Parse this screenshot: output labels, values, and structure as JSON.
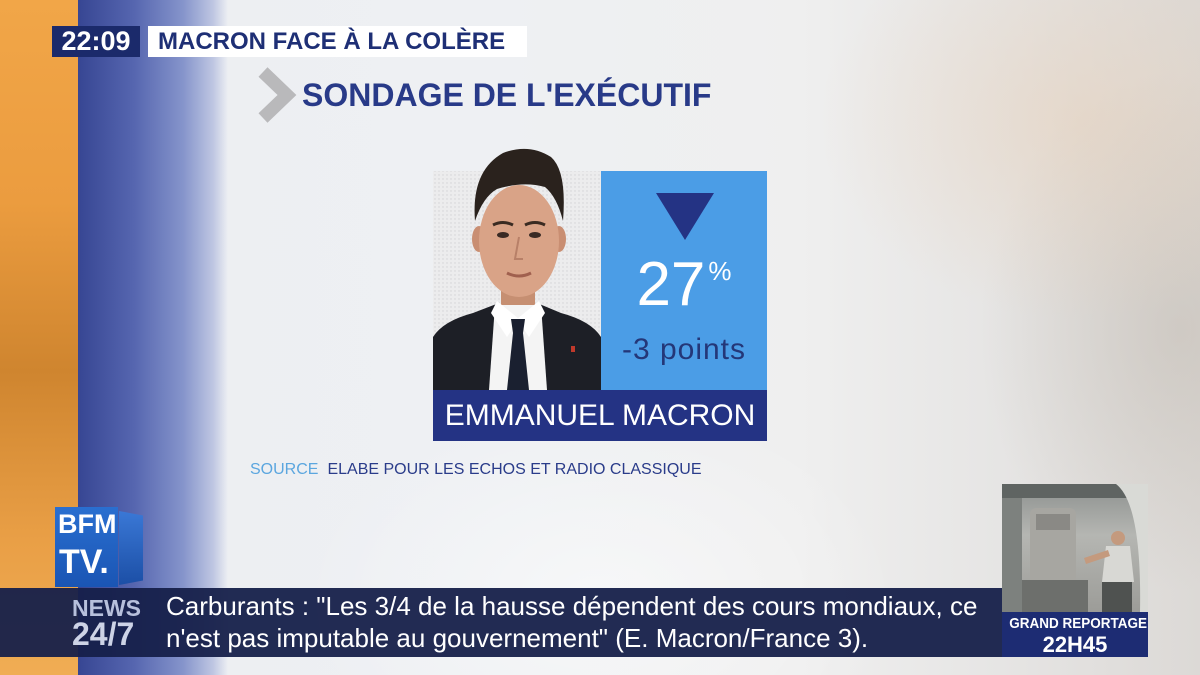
{
  "clock": {
    "time": "22:09"
  },
  "headline": {
    "text": "MACRON FACE À LA COLÈRE"
  },
  "section": {
    "title": "SONDAGE DE L'EXÉCUTIF"
  },
  "poll_card": {
    "value": "27",
    "unit": "%",
    "change": "-3 points",
    "name": "EMMANUEL MACRON"
  },
  "source": {
    "label": "SOURCE",
    "text": "ELABE POUR LES ECHOS ET RADIO CLASSIQUE"
  },
  "logo": {
    "line1": "BFM",
    "line2": "TV."
  },
  "ticker": {
    "label_top": "NEWS",
    "label_bottom": "24/7",
    "lines": [
      "Carburants : \"Les 3/4 de la hausse dépendent des cours mondiaux, ce",
      "n'est pas imputable au gouvernement\" (E. Macron/France 3)."
    ]
  },
  "promo": {
    "title": "GRAND REPORTAGE",
    "time": "22H45"
  },
  "icons": {
    "section_marker": "chevron-right-icon",
    "trend": "down-triangle-icon"
  },
  "colors": {
    "navy": "#243384",
    "panel_blue": "#4b9de6",
    "source_blue": "#5ba6df",
    "ticker_bg": "#16204a",
    "orange_band": "#eb9c3f"
  }
}
